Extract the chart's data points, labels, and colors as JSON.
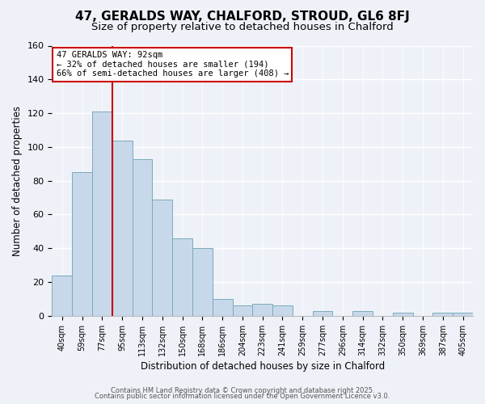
{
  "title": "47, GERALDS WAY, CHALFORD, STROUD, GL6 8FJ",
  "subtitle": "Size of property relative to detached houses in Chalford",
  "xlabel": "Distribution of detached houses by size in Chalford",
  "ylabel": "Number of detached properties",
  "bar_labels": [
    "40sqm",
    "59sqm",
    "77sqm",
    "95sqm",
    "113sqm",
    "132sqm",
    "150sqm",
    "168sqm",
    "186sqm",
    "204sqm",
    "223sqm",
    "241sqm",
    "259sqm",
    "277sqm",
    "296sqm",
    "314sqm",
    "332sqm",
    "350sqm",
    "369sqm",
    "387sqm",
    "405sqm"
  ],
  "bar_values": [
    24,
    85,
    121,
    104,
    93,
    69,
    46,
    40,
    10,
    6,
    7,
    6,
    0,
    3,
    0,
    3,
    0,
    2,
    0,
    2,
    2
  ],
  "bar_color": "#c8d8eb",
  "bar_edge_color": "#7aaabb",
  "vline_x_index": 3,
  "vline_color": "#cc0000",
  "ylim": [
    0,
    160
  ],
  "yticks": [
    0,
    20,
    40,
    60,
    80,
    100,
    120,
    140,
    160
  ],
  "annotation_title": "47 GERALDS WAY: 92sqm",
  "annotation_line1": "← 32% of detached houses are smaller (194)",
  "annotation_line2": "66% of semi-detached houses are larger (408) →",
  "footer1": "Contains HM Land Registry data © Crown copyright and database right 2025.",
  "footer2": "Contains public sector information licensed under the Open Government Licence v3.0.",
  "bg_color": "#eef2f8",
  "plot_bg_color": "#eef2f8",
  "grid_color": "#ffffff",
  "title_fontsize": 11,
  "subtitle_fontsize": 9.5,
  "tick_fontsize": 7,
  "ylabel_fontsize": 8.5,
  "xlabel_fontsize": 8.5,
  "footer_fontsize": 6,
  "annotation_fontsize": 7.5
}
